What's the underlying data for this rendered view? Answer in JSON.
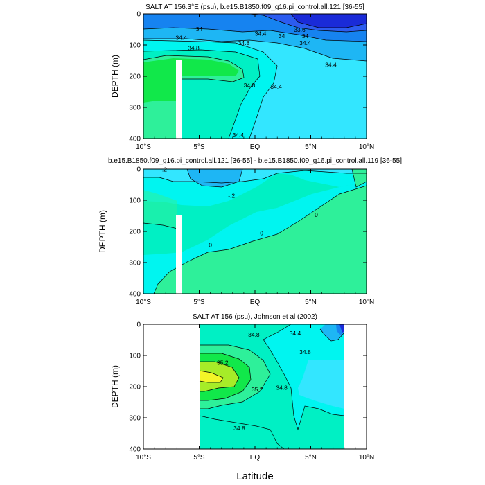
{
  "figure": {
    "xlabel": "Latitude",
    "ylabel": "DEPTH (m)"
  },
  "colors": {
    "cyan_light": "#33e6ff",
    "cyan": "#00f5f0",
    "aquamarine": "#00f0c4",
    "green_light": "#2ef09a",
    "green": "#11e84a",
    "green_yellow": "#a6ec28",
    "yellow": "#f3f528",
    "sky": "#1eb6f4",
    "blue": "#1683f0",
    "royal": "#2c5cf0",
    "navy": "#1a2bd8",
    "white": "#ffffff"
  },
  "chart_data": [
    {
      "type": "contour",
      "title": "SALT AT 156.3°E (psu), b.e15.B1850.f09_g16.pi_control.all.121 [36-55]",
      "xlabel": "",
      "ylabel": "DEPTH (m)",
      "x_ticks": [
        "10°S",
        "5°S",
        "EQ",
        "5°N",
        "10°N"
      ],
      "x_range": [
        -10,
        10
      ],
      "y_ticks": [
        "0",
        "100",
        "200",
        "300",
        "400"
      ],
      "y_range": [
        0,
        400
      ],
      "y_reversed": true,
      "missing_column": {
        "x": [
          -7.0,
          -6.5
        ],
        "depth": [
          145,
          400
        ]
      },
      "contour_labels": [
        {
          "text": "34",
          "x": -5.0,
          "depth": 55
        },
        {
          "text": "34.4",
          "x": -6.6,
          "depth": 83
        },
        {
          "text": "34",
          "x": 2.4,
          "depth": 78
        },
        {
          "text": "34.4",
          "x": 0.5,
          "depth": 70
        },
        {
          "text": "34.8",
          "x": -1.0,
          "depth": 100
        },
        {
          "text": "34.8",
          "x": -5.5,
          "depth": 117
        },
        {
          "text": "33.6",
          "x": 4.0,
          "depth": 58
        },
        {
          "text": "34",
          "x": 4.5,
          "depth": 78
        },
        {
          "text": "34.4",
          "x": 4.5,
          "depth": 100
        },
        {
          "text": "34.4",
          "x": 6.8,
          "depth": 170
        },
        {
          "text": "34.8",
          "x": -0.5,
          "depth": 235
        },
        {
          "text": "34.4",
          "x": 1.9,
          "depth": 240
        },
        {
          "text": "34.4",
          "x": -1.5,
          "depth": 395
        }
      ]
    },
    {
      "type": "contour",
      "title": "b.e15.B1850.f09_g16.pi_control.all.121 [36-55] - b.e15.B1850.f09_g16.pi_control.all.119 [36-55]",
      "xlabel": "",
      "ylabel": "DEPTH (m)",
      "x_ticks": [
        "10°S",
        "5°S",
        "EQ",
        "5°N",
        "10°N"
      ],
      "x_range": [
        -10,
        10
      ],
      "y_ticks": [
        "0",
        "100",
        "200",
        "300",
        "400"
      ],
      "y_range": [
        0,
        400
      ],
      "y_reversed": true,
      "missing_column": {
        "x": [
          -7.0,
          -6.5
        ],
        "depth": [
          150,
          400
        ]
      },
      "contour_labels": [
        {
          "text": "-.2",
          "x": -8.2,
          "depth": 8
        },
        {
          "text": "-.2",
          "x": -2.1,
          "depth": 92
        },
        {
          "text": "0",
          "x": 5.5,
          "depth": 153
        },
        {
          "text": "0",
          "x": 0.6,
          "depth": 212
        },
        {
          "text": "0",
          "x": -4.0,
          "depth": 250
        }
      ]
    },
    {
      "type": "contour",
      "title": "SALT AT 156 (psu), Johnson et al (2002)",
      "xlabel": "Latitude",
      "ylabel": "DEPTH (m)",
      "x_ticks": [
        "10°S",
        "5°S",
        "EQ",
        "5°N",
        "10°N"
      ],
      "x_range": [
        -10,
        10
      ],
      "y_ticks": [
        "0",
        "100",
        "200",
        "300",
        "400"
      ],
      "y_range": [
        0,
        400
      ],
      "y_reversed": true,
      "data_x_range": [
        -5,
        8
      ],
      "contour_labels": [
        {
          "text": "34.4",
          "x": 3.6,
          "depth": 35
        },
        {
          "text": "34.8",
          "x": -0.1,
          "depth": 40
        },
        {
          "text": "34.8",
          "x": 4.5,
          "depth": 95
        },
        {
          "text": "35.2",
          "x": -2.9,
          "depth": 130
        },
        {
          "text": "35.2",
          "x": 0.2,
          "depth": 215
        },
        {
          "text": "34.8",
          "x": 2.4,
          "depth": 210
        },
        {
          "text": "34.8",
          "x": -1.4,
          "depth": 340
        }
      ]
    }
  ]
}
